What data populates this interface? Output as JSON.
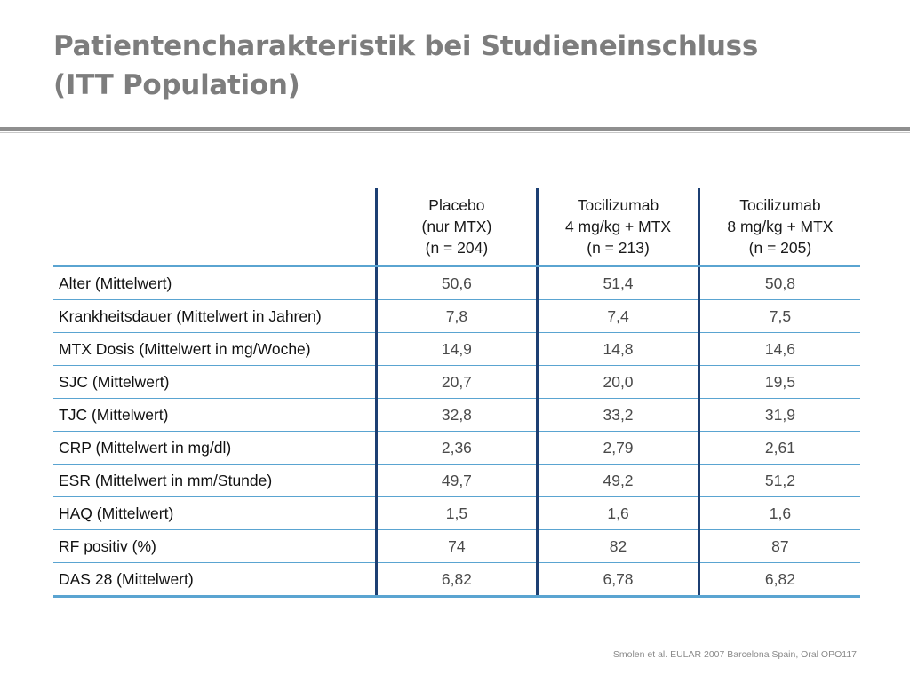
{
  "title": {
    "line1": "Patientencharakteristik bei Studieneinschluss",
    "line2": "(ITT Population)"
  },
  "table": {
    "columns": [
      {
        "lines": [
          "Placebo",
          "(nur MTX)",
          "(n = 204)"
        ]
      },
      {
        "lines": [
          "Tocilizumab",
          "4 mg/kg + MTX",
          "(n = 213)"
        ]
      },
      {
        "lines": [
          "Tocilizumab",
          "8 mg/kg + MTX",
          "(n = 205)"
        ]
      }
    ],
    "rows": [
      {
        "label": "Alter (Mittelwert)",
        "values": [
          "50,6",
          "51,4",
          "50,8"
        ]
      },
      {
        "label": "Krankheitsdauer (Mittelwert in Jahren)",
        "values": [
          "7,8",
          "7,4",
          "7,5"
        ]
      },
      {
        "label": "MTX Dosis (Mittelwert in mg/Woche)",
        "values": [
          "14,9",
          "14,8",
          "14,6"
        ]
      },
      {
        "label": "SJC (Mittelwert)",
        "values": [
          "20,7",
          "20,0",
          "19,5"
        ]
      },
      {
        "label": "TJC (Mittelwert)",
        "values": [
          "32,8",
          "33,2",
          "31,9"
        ]
      },
      {
        "label": "CRP (Mittelwert in mg/dl)",
        "values": [
          "2,36",
          "2,79",
          "2,61"
        ]
      },
      {
        "label": "ESR (Mittelwert in mm/Stunde)",
        "values": [
          "49,7",
          "49,2",
          "51,2"
        ]
      },
      {
        "label": "HAQ (Mittelwert)",
        "values": [
          "1,5",
          "1,6",
          "1,6"
        ]
      },
      {
        "label": "RF positiv (%)",
        "values": [
          "74",
          "82",
          "87"
        ]
      },
      {
        "label": "DAS 28 (Mittelwert)",
        "values": [
          "6,82",
          "6,78",
          "6,82"
        ]
      }
    ]
  },
  "source": "Smolen et al. EULAR 2007 Barcelona Spain, Oral OPO117"
}
